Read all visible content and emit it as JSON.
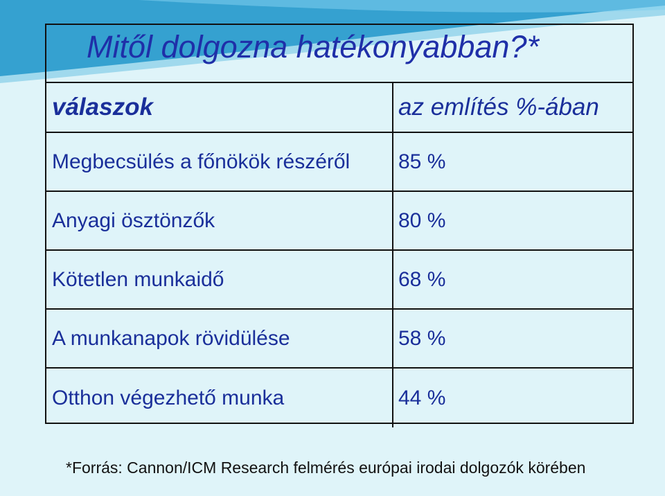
{
  "title": "Mitől dolgozna hatékonyabban?*",
  "table": {
    "header": {
      "col1": "válaszok",
      "col2": "az említés %-ában"
    },
    "rows": [
      {
        "answer": "Megbecsülés a főnökök részéről",
        "percent": "85 %"
      },
      {
        "answer": "Anyagi ösztönzők",
        "percent": "80 %"
      },
      {
        "answer": "Kötetlen munkaidő",
        "percent": "68 %"
      },
      {
        "answer": "A munkanapok rövidülése",
        "percent": "58 %"
      },
      {
        "answer": "Otthon végezhető munka",
        "percent": "44 %"
      }
    ]
  },
  "footnote": "*Forrás: Cannon/ICM Research felmérés európai irodai dolgozók körében",
  "colors": {
    "background": "#dff4f9",
    "text": "#1a2f9a",
    "title": "#1f2fa8",
    "swoosh": "#1e8fc4"
  }
}
